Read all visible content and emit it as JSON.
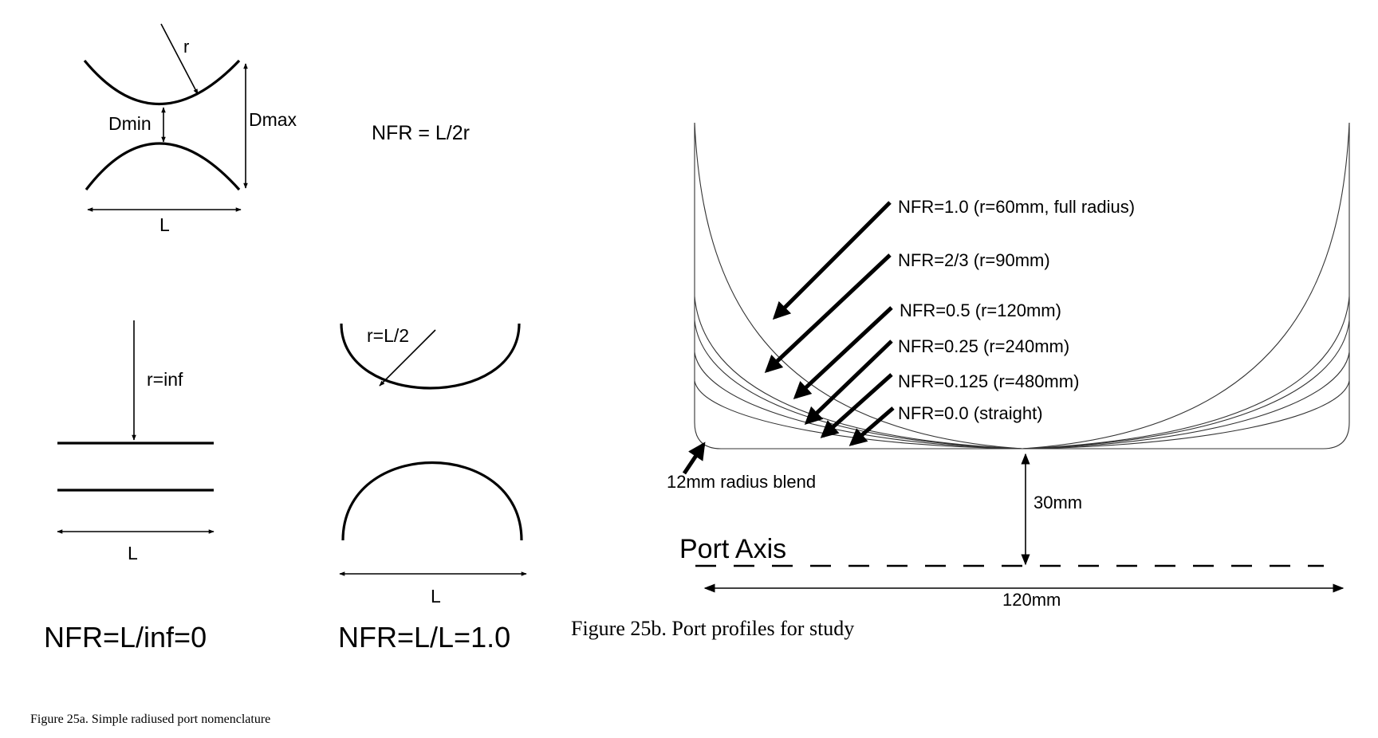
{
  "figure_a": {
    "top_diagram": {
      "radius_label": "r",
      "dmin_label": "Dmin",
      "dmax_label": "Dmax",
      "length_label": "L",
      "formula": "NFR = L/2r"
    },
    "straight_port": {
      "radius_label": "r=inf",
      "length_label": "L",
      "result": "NFR=L/inf=0"
    },
    "full_radius_port": {
      "radius_label": "r=L/2",
      "length_label": "L",
      "result": "NFR=L/L=1.0"
    },
    "caption": "Figure 25a. Simple radiused port nomenclature"
  },
  "figure_b": {
    "profiles": [
      "NFR=1.0 (r=60mm, full radius)",
      "NFR=2/3 (r=90mm)",
      "NFR=0.5 (r=120mm)",
      "NFR=0.25 (r=240mm)",
      "NFR=0.125 (r=480mm)",
      "NFR=0.0 (straight)"
    ],
    "blend_label": "12mm radius blend",
    "offset_label": "30mm",
    "axis_label": "Port Axis",
    "length_label": "120mm",
    "caption": "Figure 25b. Port profiles for study"
  }
}
